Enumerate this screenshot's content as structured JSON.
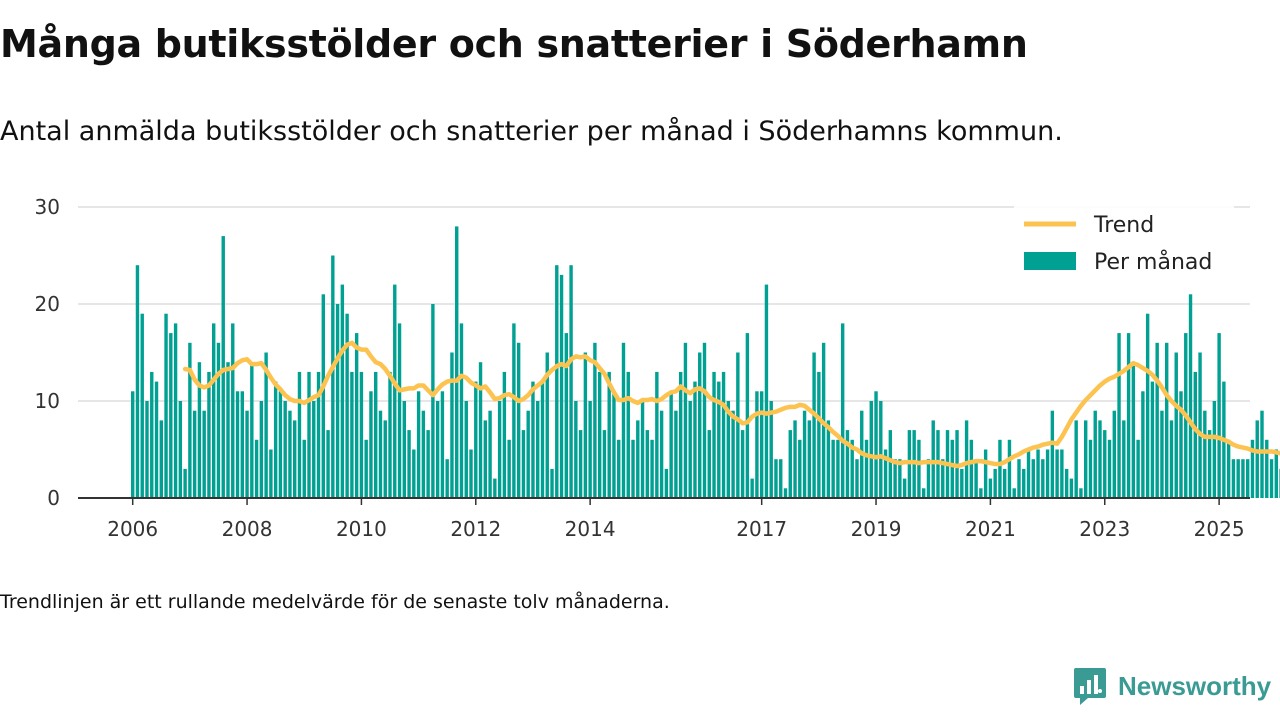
{
  "header": {
    "title": "Många butiksstölder och snatterier i Söderhamn",
    "subtitle": "Antal anmälda butiksstölder och snatterier per månad i Söderhamns kommun."
  },
  "footnote": "Trendlinjen är ett rullande medelvärde för de senaste tolv månaderna.",
  "brand": {
    "name": "Newsworthy",
    "icon": "newsworthy-logo-icon"
  },
  "colors": {
    "bars": "#00a092",
    "trend": "#fdc351",
    "grid": "#dddddd",
    "axis": "#333333",
    "brand": "#3a9a94"
  },
  "chart_data": {
    "type": "bar",
    "x_axis": {
      "type": "date",
      "start": "2006-01",
      "end": "2025-03",
      "ticks": [
        "2006",
        "2008",
        "2010",
        "2012",
        "2014",
        "2017",
        "2019",
        "2021",
        "2023",
        "2025"
      ]
    },
    "y_axis": {
      "min": 0,
      "max": 30,
      "ticks": [
        0,
        10,
        20,
        30
      ],
      "grid": true
    },
    "legend": {
      "position": "top-right",
      "entries": [
        {
          "label": "Trend",
          "kind": "line"
        },
        {
          "label": "Per månad",
          "kind": "bar"
        }
      ]
    },
    "series": [
      {
        "name": "Per månad",
        "kind": "bar",
        "start": "2006-01",
        "values": [
          11,
          24,
          19,
          10,
          13,
          12,
          8,
          19,
          17,
          18,
          10,
          3,
          16,
          9,
          14,
          9,
          13,
          18,
          16,
          27,
          14,
          18,
          11,
          11,
          9,
          14,
          6,
          10,
          15,
          5,
          12,
          11,
          10,
          9,
          8,
          13,
          6,
          13,
          10,
          13,
          21,
          7,
          25,
          20,
          22,
          19,
          13,
          17,
          13,
          6,
          11,
          13,
          9,
          8,
          13,
          22,
          18,
          10,
          7,
          5,
          11,
          9,
          7,
          20,
          10,
          11,
          4,
          15,
          28,
          18,
          10,
          5,
          12,
          14,
          8,
          9,
          2,
          10,
          13,
          6,
          18,
          16,
          7,
          9,
          12,
          10,
          12,
          15,
          3,
          24,
          23,
          17,
          24,
          10,
          7,
          15,
          10,
          16,
          13,
          7,
          13,
          11,
          6,
          16,
          13,
          6,
          8,
          10,
          7,
          6,
          13,
          9,
          3,
          11,
          9,
          13,
          16,
          10,
          12,
          15,
          16,
          7,
          13,
          12,
          13,
          10,
          9,
          15,
          7,
          17,
          2,
          11,
          11,
          22,
          10,
          4,
          4,
          1,
          7,
          8,
          6,
          9,
          8,
          15,
          13,
          16,
          8,
          6,
          6,
          18,
          7,
          6,
          4,
          9,
          6,
          10,
          11,
          10,
          5,
          7,
          4,
          4,
          2,
          7,
          7,
          6,
          1,
          4,
          8,
          7,
          4,
          7,
          6,
          7,
          3,
          8,
          6,
          4,
          1,
          5,
          2,
          3,
          6,
          3,
          6,
          1,
          4,
          3,
          5,
          4,
          5,
          4,
          5,
          9,
          5,
          5,
          3,
          2,
          8,
          1,
          8,
          6,
          9,
          8,
          7,
          6,
          9,
          17,
          8,
          17,
          14,
          6,
          11,
          19,
          12,
          16,
          9,
          16,
          8,
          15,
          11,
          17,
          21,
          13,
          15,
          9,
          7,
          10,
          17,
          12,
          6,
          4,
          4,
          4,
          4,
          6,
          8,
          9,
          6,
          4,
          5,
          3,
          7,
          8,
          8,
          8,
          7,
          6,
          5,
          4,
          1,
          3,
          4,
          6,
          3,
          4,
          5,
          4,
          6,
          6,
          5,
          7,
          5,
          7,
          4,
          6,
          22
        ]
      },
      {
        "name": "Trend",
        "kind": "line",
        "start": "2006-12",
        "values": [
          13.3,
          13.2,
          12.2,
          11.6,
          11.4,
          11.6,
          12.2,
          12.8,
          13.2,
          13.3,
          13.4,
          13.9,
          14.2,
          14.3,
          13.8,
          13.8,
          13.9,
          13.2,
          12.4,
          11.7,
          11.2,
          10.6,
          10.2,
          10.0,
          10.0,
          9.8,
          10.1,
          10.4,
          10.6,
          11.5,
          12.6,
          13.5,
          14.4,
          15.2,
          15.8,
          16.0,
          15.5,
          15.3,
          15.3,
          14.6,
          14.0,
          13.8,
          13.3,
          12.6,
          11.8,
          11.1,
          11.2,
          11.3,
          11.3,
          11.6,
          11.6,
          11.1,
          10.6,
          11.2,
          11.7,
          12.0,
          12.1,
          12.1,
          12.6,
          12.4,
          11.9,
          11.6,
          11.3,
          11.5,
          10.9,
          10.2,
          10.3,
          10.6,
          10.7,
          10.4,
          10.0,
          10.2,
          10.6,
          11.2,
          11.6,
          12.0,
          12.7,
          13.2,
          13.6,
          13.8,
          13.6,
          14.3,
          14.6,
          14.5,
          14.6,
          14.2,
          14.0,
          13.4,
          12.8,
          11.8,
          10.9,
          10.1,
          10.1,
          10.3,
          10.0,
          9.8,
          10.1,
          10.1,
          10.2,
          10.0,
          10.2,
          10.6,
          10.9,
          11.0,
          11.5,
          11.1,
          10.8,
          11.2,
          11.3,
          11.0,
          10.4,
          10.1,
          9.9,
          9.6,
          8.9,
          8.4,
          8.1,
          7.7,
          7.8,
          8.4,
          8.7,
          8.8,
          8.7,
          8.8,
          8.9,
          9.1,
          9.3,
          9.4,
          9.4,
          9.6,
          9.5,
          9.1,
          8.7,
          8.2,
          7.7,
          7.3,
          6.8,
          6.4,
          5.9,
          5.6,
          5.2,
          5.0,
          4.6,
          4.4,
          4.3,
          4.2,
          4.3,
          4.1,
          3.9,
          3.7,
          3.6,
          3.7,
          3.7,
          3.7,
          3.6,
          3.7,
          3.7,
          3.7,
          3.7,
          3.6,
          3.5,
          3.4,
          3.3,
          3.4,
          3.6,
          3.7,
          3.8,
          3.8,
          3.7,
          3.6,
          3.5,
          3.5,
          3.7,
          4.0,
          4.3,
          4.5,
          4.8,
          5.0,
          5.2,
          5.3,
          5.5,
          5.6,
          5.7,
          5.6,
          6.3,
          7.2,
          8.1,
          8.8,
          9.5,
          10.1,
          10.6,
          11.1,
          11.6,
          12.0,
          12.3,
          12.5,
          12.8,
          13.1,
          13.5,
          13.9,
          13.7,
          13.4,
          13.1,
          12.7,
          12.1,
          11.4,
          10.6,
          10.0,
          9.5,
          9.1,
          8.5,
          7.8,
          7.1,
          6.6,
          6.3,
          6.3,
          6.3,
          6.2,
          6.0,
          5.8,
          5.5,
          5.3,
          5.2,
          5.1,
          4.9,
          4.8,
          4.8,
          4.8,
          4.8,
          4.7,
          4.6,
          4.6,
          4.5,
          4.4,
          4.4,
          4.3,
          4.3,
          4.5,
          6.5
        ]
      }
    ]
  }
}
